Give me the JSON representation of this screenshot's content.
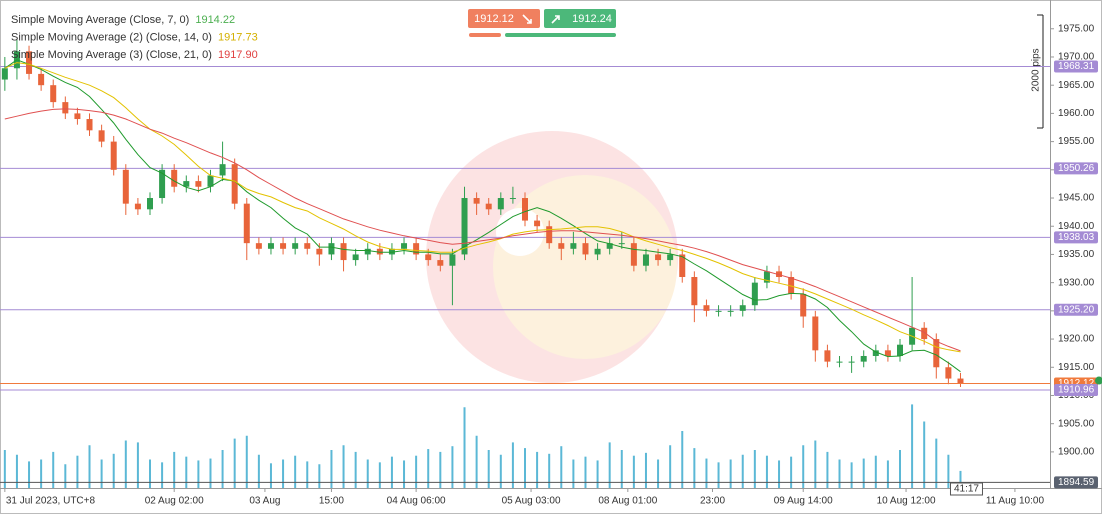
{
  "chart_data": {
    "type": "candlestick",
    "up_color": "#2f9e4f",
    "down_color": "#e8643a",
    "ylim": [
      1893.6,
      1980.1
    ],
    "yticks": [
      {
        "value": 1900,
        "label": "1900.00"
      },
      {
        "value": 1905,
        "label": "1905.00"
      },
      {
        "value": 1910,
        "label": "1910.00"
      },
      {
        "value": 1915,
        "label": "1915.00"
      },
      {
        "value": 1920,
        "label": "1920.00"
      },
      {
        "value": 1925,
        "label": "1925.00"
      },
      {
        "value": 1930,
        "label": "1930.00"
      },
      {
        "value": 1935,
        "label": "1935.00"
      },
      {
        "value": 1940,
        "label": "1940.00"
      },
      {
        "value": 1945,
        "label": "1945.00"
      },
      {
        "value": 1950,
        "label": "1950.00"
      },
      {
        "value": 1955,
        "label": "1955.00"
      },
      {
        "value": 1960,
        "label": "1960.00"
      },
      {
        "value": 1965,
        "label": "1965.00"
      },
      {
        "value": 1970,
        "label": "1970.00"
      },
      {
        "value": 1975,
        "label": "1975.00"
      }
    ],
    "xlim": [
      -0.4,
      86.4
    ],
    "xticks": [
      {
        "value": 0,
        "label": "31 Jul 2023, UTC+8"
      },
      {
        "value": 14,
        "label": "02 Aug 02:00"
      },
      {
        "value": 21.5,
        "label": "03 Aug"
      },
      {
        "value": 27,
        "label": "15:00"
      },
      {
        "value": 34,
        "label": "04 Aug 06:00"
      },
      {
        "value": 43.5,
        "label": "05 Aug 03:00"
      },
      {
        "value": 51.5,
        "label": "08 Aug 01:00"
      },
      {
        "value": 58.5,
        "label": "23:00"
      },
      {
        "value": 66,
        "label": "09 Aug 14:00"
      },
      {
        "value": 74.5,
        "label": "10 Aug 12:00"
      },
      {
        "value": 83.5,
        "label": "11 Aug 10:00"
      }
    ],
    "candles": {
      "open": [
        1966,
        1968,
        1971,
        1967,
        1965,
        1962,
        1960,
        1959,
        1957,
        1955,
        1950,
        1944,
        1943,
        1945,
        1950,
        1947,
        1948,
        1947,
        1949,
        1951,
        1944,
        1937,
        1936,
        1937,
        1936,
        1937,
        1936,
        1935,
        1937,
        1934,
        1935,
        1936,
        1935,
        1936,
        1937,
        1935,
        1934,
        1933,
        1935,
        1945,
        1944,
        1943,
        1945,
        1945,
        1941,
        1940,
        1937,
        1936,
        1937,
        1935,
        1936,
        1937,
        1937,
        1933,
        1935,
        1934,
        1935,
        1931,
        1926,
        1925,
        1925,
        1925,
        1926,
        1930,
        1932,
        1931,
        1928,
        1924,
        1918,
        1916,
        1916,
        1916,
        1917,
        1918,
        1917,
        1919,
        1922,
        1920,
        1915,
        1913
      ],
      "high": [
        1970,
        1973,
        1972,
        1968,
        1966,
        1963,
        1961,
        1960,
        1958,
        1956,
        1951,
        1945,
        1946,
        1951,
        1951,
        1949,
        1949,
        1950,
        1955,
        1952,
        1945,
        1938,
        1938,
        1938,
        1938,
        1938,
        1937,
        1938,
        1938,
        1936,
        1937,
        1937,
        1937,
        1938,
        1938,
        1936,
        1935,
        1936,
        1947,
        1946,
        1945,
        1946,
        1947,
        1946,
        1942,
        1941,
        1938,
        1939,
        1938,
        1937,
        1938,
        1939,
        1938,
        1936,
        1936,
        1936,
        1936,
        1932,
        1927,
        1926,
        1926,
        1927,
        1931,
        1933,
        1933,
        1932,
        1929,
        1925,
        1919,
        1917,
        1917,
        1918,
        1919,
        1919,
        1920,
        1931,
        1923,
        1921,
        1916,
        1914
      ],
      "low": [
        1964,
        1966,
        1966,
        1964,
        1961,
        1959,
        1958,
        1956,
        1954,
        1949,
        1942,
        1942,
        1942,
        1944,
        1946,
        1946,
        1946,
        1946,
        1948,
        1943,
        1934,
        1935,
        1935,
        1935,
        1935,
        1935,
        1933,
        1934,
        1932,
        1933,
        1934,
        1934,
        1934,
        1935,
        1934,
        1933,
        1932,
        1926,
        1934,
        1942,
        1942,
        1942,
        1944,
        1940,
        1939,
        1936,
        1934,
        1935,
        1934,
        1934,
        1935,
        1936,
        1932,
        1932,
        1933,
        1933,
        1930,
        1923,
        1924,
        1924,
        1924,
        1924,
        1925,
        1929,
        1930,
        1927,
        1922,
        1916,
        1915,
        1915,
        1914,
        1915,
        1916,
        1916,
        1916,
        1918,
        1919,
        1913,
        1912,
        1911.5
      ],
      "close": [
        1968,
        1971,
        1967,
        1965,
        1962,
        1960,
        1959,
        1957,
        1955,
        1950,
        1944,
        1943,
        1945,
        1950,
        1947,
        1948,
        1947,
        1949,
        1951,
        1944,
        1937,
        1936,
        1937,
        1936,
        1937,
        1936,
        1935,
        1937,
        1934,
        1935,
        1936,
        1935,
        1936,
        1937,
        1935,
        1934,
        1933,
        1935,
        1945,
        1944,
        1943,
        1945,
        1945,
        1941,
        1940,
        1937,
        1936,
        1937,
        1935,
        1936,
        1937,
        1937,
        1933,
        1935,
        1934,
        1935,
        1931,
        1926,
        1925,
        1925,
        1925,
        1926,
        1930,
        1932,
        1931,
        1928,
        1924,
        1918,
        1916,
        1916,
        1916,
        1917,
        1918,
        1917,
        1919,
        1922,
        1920,
        1915,
        1913,
        1912.12
      ]
    },
    "series": [
      {
        "name": "Simple Moving Average (Close, 7, 0)",
        "color": "#1f9a2c",
        "legend_color": "#4caf50",
        "values": [
          1968,
          1969.5,
          1968.7,
          1967.8,
          1966.6,
          1965.5,
          1964.6,
          1963,
          1960.7,
          1958.3,
          1955.4,
          1952.7,
          1950.4,
          1949.4,
          1948,
          1946.9,
          1946.3,
          1947,
          1948.3,
          1948,
          1946.1,
          1944.6,
          1943.3,
          1941.4,
          1939.7,
          1938.6,
          1936.3,
          1936.3,
          1935.9,
          1935.7,
          1935.7,
          1935.4,
          1935.4,
          1935.7,
          1935.4,
          1935.4,
          1935.1,
          1935.1,
          1936.4,
          1937.6,
          1938.9,
          1940.3,
          1941.7,
          1942.6,
          1943.3,
          1942.6,
          1941.4,
          1940.1,
          1938.7,
          1937.4,
          1936.9,
          1936.3,
          1935.9,
          1935.7,
          1935.4,
          1935.1,
          1934.6,
          1933.3,
          1932.1,
          1930.7,
          1929.3,
          1927.9,
          1926.9,
          1927,
          1927.7,
          1928.1,
          1928,
          1927.1,
          1925.6,
          1923.3,
          1921.3,
          1919.1,
          1917.7,
          1916.9,
          1917,
          1917.9,
          1918,
          1917.2,
          1915.8,
          1914.22
        ],
        "value_labels": [
          null,
          null,
          null,
          null,
          null,
          null,
          null,
          null,
          null,
          null,
          null,
          null,
          null,
          null,
          null,
          null,
          null,
          null,
          null,
          null,
          null,
          null,
          null,
          null,
          null,
          null,
          null,
          null,
          null,
          null,
          null,
          null,
          null,
          null,
          null,
          null,
          null,
          null,
          null,
          null,
          null,
          null,
          null,
          null,
          null,
          null,
          null,
          null,
          null,
          null,
          null,
          null,
          null,
          null,
          null,
          null,
          null,
          null,
          null,
          null,
          null,
          null,
          null,
          null,
          null,
          null,
          null,
          null,
          null,
          null,
          null,
          null,
          null,
          null,
          null,
          null,
          null,
          null,
          null,
          "1914.22"
        ]
      },
      {
        "name": "Simple Moving Average (2) (Close, 14, 0)",
        "color": "#e3c200",
        "legend_color": "#d4b000",
        "values": [
          1968,
          1969,
          1968.7,
          1968,
          1967.2,
          1966.4,
          1965.7,
          1965,
          1964,
          1962.8,
          1961,
          1959,
          1957.2,
          1956,
          1954.5,
          1952.6,
          1950.6,
          1949,
          1948.5,
          1948,
          1946.6,
          1945.8,
          1945.2,
          1944.2,
          1943.3,
          1942.7,
          1941.5,
          1940.5,
          1939.5,
          1938.3,
          1937.2,
          1936.4,
          1935.9,
          1935.9,
          1935.7,
          1935.6,
          1935.4,
          1935.4,
          1936.1,
          1936.7,
          1937.2,
          1937.8,
          1938.6,
          1939,
          1939.3,
          1939.4,
          1939.5,
          1939.7,
          1939.9,
          1939.9,
          1939.6,
          1939,
          1938.1,
          1937.4,
          1936.8,
          1936.2,
          1935.7,
          1935,
          1934.3,
          1933.5,
          1932.6,
          1931.6,
          1930.9,
          1930.4,
          1929.9,
          1929.4,
          1928.8,
          1928,
          1927.1,
          1926.2,
          1925.3,
          1924.3,
          1923.4,
          1922.4,
          1921.3,
          1920.5,
          1919.6,
          1918.6,
          1918.1,
          1917.73
        ],
        "value_labels": [
          null,
          null,
          null,
          null,
          null,
          null,
          null,
          null,
          null,
          null,
          null,
          null,
          null,
          null,
          null,
          null,
          null,
          null,
          null,
          null,
          null,
          null,
          null,
          null,
          null,
          null,
          null,
          null,
          null,
          null,
          null,
          null,
          null,
          null,
          null,
          null,
          null,
          null,
          null,
          null,
          null,
          null,
          null,
          null,
          null,
          null,
          null,
          null,
          null,
          null,
          null,
          null,
          null,
          null,
          null,
          null,
          null,
          null,
          null,
          null,
          null,
          null,
          null,
          null,
          null,
          null,
          null,
          null,
          null,
          null,
          null,
          null,
          null,
          null,
          null,
          null,
          null,
          null,
          null,
          "1917.73"
        ]
      },
      {
        "name": "Simple Moving Average (3) (Close, 21, 0)",
        "color": "#e05050",
        "legend_color": "#e04040",
        "values": [
          1959,
          1959.5,
          1960,
          1960.4,
          1960.7,
          1960.8,
          1960.7,
          1960.5,
          1960.2,
          1959.7,
          1959,
          1958.1,
          1957.2,
          1956.5,
          1955.6,
          1954.8,
          1953.9,
          1953,
          1952.2,
          1951.2,
          1950,
          1948.6,
          1947.4,
          1946.2,
          1945,
          1944,
          1943.1,
          1942.2,
          1941.3,
          1940.6,
          1939.9,
          1939.3,
          1938.8,
          1938.3,
          1937.9,
          1937.5,
          1937.1,
          1936.8,
          1937,
          1937.3,
          1937.6,
          1937.9,
          1938.3,
          1938.6,
          1938.9,
          1939.1,
          1939.2,
          1939.2,
          1939,
          1938.8,
          1938.6,
          1938.4,
          1938.1,
          1937.8,
          1937.4,
          1937,
          1936.6,
          1936.1,
          1935.5,
          1934.8,
          1934,
          1933.2,
          1932.6,
          1932,
          1931.4,
          1930.8,
          1930.1,
          1929.3,
          1928.4,
          1927.5,
          1926.6,
          1925.7,
          1924.8,
          1923.9,
          1923,
          1922.1,
          1921.2,
          1919.6,
          1918.7,
          1917.9
        ],
        "value_labels": [
          null,
          null,
          null,
          null,
          null,
          null,
          null,
          null,
          null,
          null,
          null,
          null,
          null,
          null,
          null,
          null,
          null,
          null,
          null,
          null,
          null,
          null,
          null,
          null,
          null,
          null,
          null,
          null,
          null,
          null,
          null,
          null,
          null,
          null,
          null,
          null,
          null,
          null,
          null,
          null,
          null,
          null,
          null,
          null,
          null,
          null,
          null,
          null,
          null,
          null,
          null,
          null,
          null,
          null,
          null,
          null,
          null,
          null,
          null,
          null,
          null,
          null,
          null,
          null,
          null,
          null,
          null,
          null,
          null,
          null,
          null,
          null,
          null,
          null,
          null,
          null,
          null,
          null,
          null,
          "1917.90"
        ]
      }
    ],
    "volume": {
      "color": "#5bb8d6",
      "vlim": [
        0,
        100
      ],
      "values": [
        40,
        35,
        28,
        30,
        38,
        25,
        34,
        45,
        30,
        36,
        50,
        48,
        30,
        27,
        38,
        33,
        29,
        31,
        40,
        52,
        55,
        35,
        26,
        30,
        34,
        28,
        25,
        40,
        45,
        38,
        30,
        27,
        33,
        29,
        34,
        41,
        38,
        44,
        85,
        55,
        40,
        35,
        48,
        42,
        38,
        36,
        44,
        30,
        33,
        29,
        48,
        40,
        34,
        37,
        30,
        45,
        60,
        42,
        31,
        27,
        30,
        35,
        40,
        34,
        29,
        33,
        45,
        50,
        38,
        30,
        27,
        31,
        34,
        29,
        40,
        88,
        70,
        52,
        35,
        18
      ]
    },
    "level_color": "#a48bd4",
    "levels": [
      {
        "value": 1968.31,
        "label": "1968.31"
      },
      {
        "value": 1950.26,
        "label": "1950.26"
      },
      {
        "value": 1938.03,
        "label": "1938.03"
      },
      {
        "value": 1925.2,
        "label": "1925.20"
      },
      {
        "value": 1910.96,
        "label": "1910.96"
      }
    ],
    "price_line_color": "#f07a3c",
    "bottom_level": 1894.59
  },
  "trade_panel": {
    "sell": 1912.12,
    "buy": 1912.24
  },
  "ruler_label": "2000 pips",
  "countdown": "41:17"
}
